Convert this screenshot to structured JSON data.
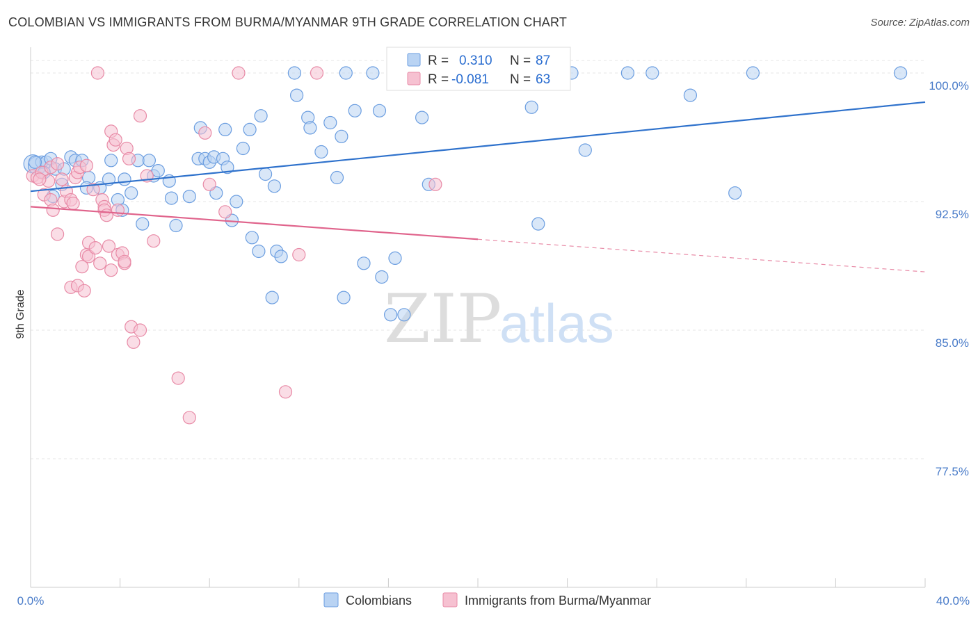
{
  "title": "COLOMBIAN VS IMMIGRANTS FROM BURMA/MYANMAR 9TH GRADE CORRELATION CHART",
  "source": "Source: ZipAtlas.com",
  "watermark": {
    "zip": "ZIP",
    "atlas": "atlas"
  },
  "chart_data": {
    "type": "scatter",
    "ylabel": "9th Grade",
    "xlim": [
      0,
      40
    ],
    "ylim": [
      70,
      101.5
    ],
    "x_tick_labels": [
      "0.0%",
      "40.0%"
    ],
    "y_ticks": [
      {
        "value": 100,
        "label": "100.0%"
      },
      {
        "value": 92.5,
        "label": "92.5%"
      },
      {
        "value": 85,
        "label": "85.0%"
      },
      {
        "value": 77.5,
        "label": "77.5%"
      }
    ],
    "grid": "horizontal dashed",
    "legend": {
      "placement": "top-center",
      "entries": [
        {
          "r_label": "R =",
          "r_value": "0.310",
          "n_label": "N =",
          "n_value": "87"
        },
        {
          "r_label": "R =",
          "r_value": "-0.081",
          "n_label": "N =",
          "n_value": "63"
        }
      ]
    },
    "series": [
      {
        "name": "Colombians",
        "color": "#6a9de0",
        "fill": "#b9d3f3",
        "trend": {
          "x0": 0,
          "y0": 93.1,
          "x1": 40,
          "y1": 98.3
        },
        "points": [
          [
            0.1,
            94.7
          ],
          [
            0.3,
            94.6
          ],
          [
            0.5,
            94.8
          ],
          [
            0.7,
            94.8
          ],
          [
            0.9,
            95.0
          ],
          [
            1.1,
            94.4
          ],
          [
            0.6,
            94.2
          ],
          [
            1.5,
            94.4
          ],
          [
            1.8,
            95.1
          ],
          [
            2.0,
            94.9
          ],
          [
            2.3,
            94.9
          ],
          [
            2.6,
            93.9
          ],
          [
            1.4,
            93.5
          ],
          [
            2.5,
            93.3
          ],
          [
            3.1,
            93.3
          ],
          [
            3.5,
            93.8
          ],
          [
            3.6,
            94.9
          ],
          [
            3.9,
            92.6
          ],
          [
            4.1,
            92.0
          ],
          [
            4.5,
            93.0
          ],
          [
            4.2,
            93.8
          ],
          [
            4.8,
            94.9
          ],
          [
            5.3,
            94.9
          ],
          [
            5.5,
            94.0
          ],
          [
            5.7,
            94.3
          ],
          [
            5.0,
            91.2
          ],
          [
            6.2,
            93.7
          ],
          [
            6.3,
            92.7
          ],
          [
            6.5,
            91.1
          ],
          [
            7.1,
            92.8
          ],
          [
            7.5,
            95.0
          ],
          [
            7.8,
            95.0
          ],
          [
            7.6,
            96.8
          ],
          [
            8.0,
            94.8
          ],
          [
            8.2,
            95.1
          ],
          [
            8.3,
            93.0
          ],
          [
            8.6,
            95.0
          ],
          [
            8.7,
            96.7
          ],
          [
            8.8,
            94.5
          ],
          [
            9.0,
            91.4
          ],
          [
            9.2,
            92.5
          ],
          [
            9.5,
            95.6
          ],
          [
            9.9,
            90.4
          ],
          [
            9.8,
            96.7
          ],
          [
            10.2,
            89.6
          ],
          [
            10.3,
            97.5
          ],
          [
            10.5,
            94.1
          ],
          [
            10.8,
            86.9
          ],
          [
            10.9,
            93.4
          ],
          [
            11.0,
            89.6
          ],
          [
            11.2,
            89.3
          ],
          [
            11.8,
            100.0
          ],
          [
            11.9,
            98.7
          ],
          [
            12.4,
            97.4
          ],
          [
            12.5,
            96.8
          ],
          [
            13.0,
            95.4
          ],
          [
            13.4,
            97.1
          ],
          [
            13.7,
            93.9
          ],
          [
            13.9,
            96.3
          ],
          [
            14.0,
            86.9
          ],
          [
            14.1,
            100.0
          ],
          [
            14.5,
            97.8
          ],
          [
            14.9,
            88.9
          ],
          [
            15.3,
            100.0
          ],
          [
            15.6,
            97.8
          ],
          [
            15.7,
            88.1
          ],
          [
            16.1,
            85.9
          ],
          [
            16.3,
            89.2
          ],
          [
            16.6,
            100.0
          ],
          [
            16.7,
            85.9
          ],
          [
            17.5,
            97.4
          ],
          [
            17.8,
            93.5
          ],
          [
            20.2,
            100.0
          ],
          [
            20.8,
            100.0
          ],
          [
            21.5,
            100.0
          ],
          [
            22.4,
            98.0
          ],
          [
            22.7,
            91.2
          ],
          [
            24.2,
            100.0
          ],
          [
            24.8,
            95.5
          ],
          [
            26.7,
            100.0
          ],
          [
            27.8,
            100.0
          ],
          [
            29.5,
            98.7
          ],
          [
            31.5,
            93.0
          ],
          [
            32.3,
            100.0
          ],
          [
            38.9,
            100.0
          ],
          [
            0.2,
            94.8
          ],
          [
            1.0,
            92.8
          ]
        ]
      },
      {
        "name": "Immigrants from Burma/Myanmar",
        "color": "#e88aa6",
        "fill": "#f6c1d1",
        "trend": {
          "x0": 0,
          "y0": 92.2,
          "x1": 20,
          "y1": 90.3
        },
        "trend_ext": {
          "x0": 20,
          "y0": 90.3,
          "x1": 40,
          "y1": 88.4
        },
        "points": [
          [
            0.1,
            94.0
          ],
          [
            0.3,
            93.9
          ],
          [
            0.5,
            94.2
          ],
          [
            0.8,
            93.7
          ],
          [
            0.9,
            94.5
          ],
          [
            1.2,
            94.7
          ],
          [
            1.4,
            93.8
          ],
          [
            0.6,
            92.9
          ],
          [
            0.9,
            92.6
          ],
          [
            1.0,
            92.0
          ],
          [
            1.2,
            90.6
          ],
          [
            1.5,
            92.5
          ],
          [
            1.6,
            93.1
          ],
          [
            1.8,
            92.6
          ],
          [
            1.9,
            92.4
          ],
          [
            2.0,
            93.9
          ],
          [
            2.1,
            94.2
          ],
          [
            2.2,
            94.5
          ],
          [
            2.5,
            94.6
          ],
          [
            1.8,
            87.5
          ],
          [
            2.1,
            87.6
          ],
          [
            2.3,
            88.7
          ],
          [
            2.4,
            87.3
          ],
          [
            2.5,
            89.4
          ],
          [
            2.6,
            89.3
          ],
          [
            2.6,
            90.1
          ],
          [
            2.9,
            89.8
          ],
          [
            2.8,
            93.2
          ],
          [
            3.2,
            92.6
          ],
          [
            3.3,
            92.2
          ],
          [
            3.3,
            92.0
          ],
          [
            3.4,
            91.7
          ],
          [
            3.6,
            88.5
          ],
          [
            3.1,
            88.9
          ],
          [
            3.5,
            89.9
          ],
          [
            3.9,
            89.4
          ],
          [
            3.6,
            96.6
          ],
          [
            3.7,
            95.8
          ],
          [
            3.8,
            96.1
          ],
          [
            3.9,
            92.0
          ],
          [
            4.1,
            89.5
          ],
          [
            4.2,
            88.9
          ],
          [
            4.2,
            89.0
          ],
          [
            4.3,
            95.6
          ],
          [
            4.4,
            95.0
          ],
          [
            4.5,
            85.2
          ],
          [
            4.6,
            84.3
          ],
          [
            4.9,
            85.0
          ],
          [
            4.9,
            97.5
          ],
          [
            5.2,
            94.0
          ],
          [
            5.5,
            90.2
          ],
          [
            6.6,
            82.2
          ],
          [
            7.1,
            79.9
          ],
          [
            7.8,
            96.5
          ],
          [
            8.0,
            93.5
          ],
          [
            8.7,
            91.9
          ],
          [
            9.3,
            100.0
          ],
          [
            11.4,
            81.4
          ],
          [
            12.0,
            89.4
          ],
          [
            3.0,
            100.0
          ],
          [
            12.8,
            100.0
          ],
          [
            18.1,
            93.5
          ],
          [
            0.4,
            93.8
          ]
        ]
      }
    ]
  }
}
